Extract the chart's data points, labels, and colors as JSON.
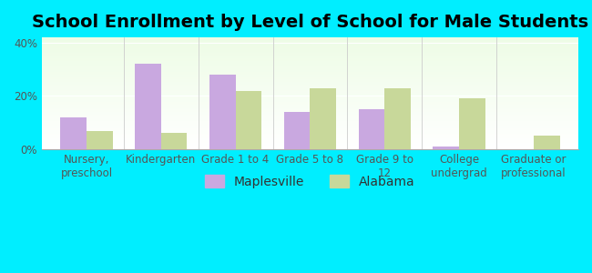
{
  "title": "School Enrollment by Level of School for Male Students",
  "categories": [
    "Nursery,\npreschool",
    "Kindergarten",
    "Grade 1 to 4",
    "Grade 5 to 8",
    "Grade 9 to\n12",
    "College\nundergrad",
    "Graduate or\nprofessional"
  ],
  "maplesville": [
    12,
    32,
    28,
    14,
    15,
    1,
    0
  ],
  "alabama": [
    7,
    6,
    22,
    23,
    23,
    19,
    5
  ],
  "bar_color_maplesville": "#c9a8e0",
  "bar_color_alabama": "#c8d89a",
  "background_color": "#00eeff",
  "plot_bg_gradient_top": "#edfce5",
  "plot_bg_gradient_bottom": "#ffffff",
  "title_fontsize": 14,
  "tick_fontsize": 8.5,
  "legend_fontsize": 10,
  "ylim": [
    0,
    42
  ],
  "yticks": [
    0,
    20,
    40
  ],
  "ytick_labels": [
    "0%",
    "20%",
    "40%"
  ],
  "bar_width": 0.35,
  "legend_labels": [
    "Maplesville",
    "Alabama"
  ]
}
